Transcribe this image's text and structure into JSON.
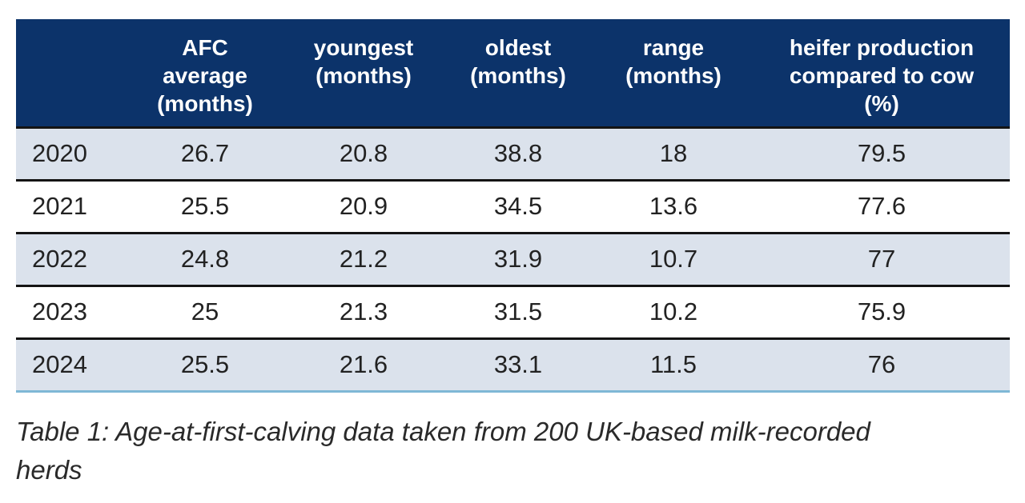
{
  "table": {
    "headers": [
      "",
      "AFC\naverage\n(months)",
      "youngest\n(months)",
      "oldest\n(months)",
      "range\n(months)",
      "heifer production\ncompared to cow\n(%)"
    ],
    "rows": [
      {
        "year": "2020",
        "afc_average": "26.7",
        "youngest": "20.8",
        "oldest": "38.8",
        "range": "18",
        "heifer_production": "79.5"
      },
      {
        "year": "2021",
        "afc_average": "25.5",
        "youngest": "20.9",
        "oldest": "34.5",
        "range": "13.6",
        "heifer_production": "77.6"
      },
      {
        "year": "2022",
        "afc_average": "24.8",
        "youngest": "21.2",
        "oldest": "31.9",
        "range": "10.7",
        "heifer_production": "77"
      },
      {
        "year": "2023",
        "afc_average": "25",
        "youngest": "21.3",
        "oldest": "31.5",
        "range": "10.2",
        "heifer_production": "75.9"
      },
      {
        "year": "2024",
        "afc_average": "25.5",
        "youngest": "21.6",
        "oldest": "33.1",
        "range": "11.5",
        "heifer_production": "76"
      }
    ]
  },
  "caption": "Table 1: Age-at-first-calving data taken from 200 UK-based milk-recorded herds",
  "colors": {
    "header_background": "#0c336a",
    "header_text": "#ffffff",
    "shaded_row": "#dbe2ec",
    "row_divider": "#141414",
    "bottom_rule": "#7fb8d6"
  }
}
